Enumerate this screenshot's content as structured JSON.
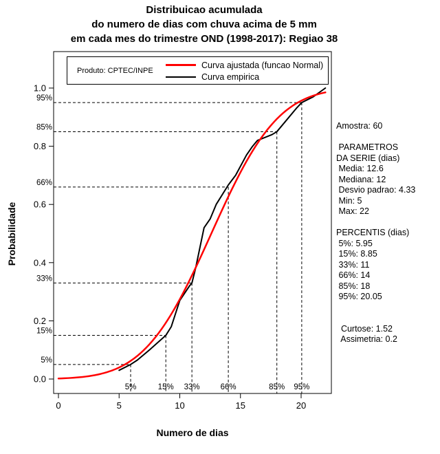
{
  "page": {
    "background": "#ffffff"
  },
  "legend": {
    "product": "Produto: CPTEC/INPE"
  },
  "stats": {
    "lines": [
      "Amostra: 60",
      "",
      " PARAMETROS",
      "DA SERIE (dias)",
      " Media: 12.6",
      " Mediana: 12",
      " Desvio padrao: 4.33",
      " Min: 5",
      " Max: 22",
      "",
      "PERCENTIS (dias)",
      " 5%: 5.95",
      " 15%: 8.85",
      " 33%: 11",
      " 66%: 14",
      " 85%: 18",
      " 95%: 20.05",
      "",
      "",
      "  Curtose: 1.52",
      "  Assimetria: 0.2"
    ]
  },
  "chart_data": {
    "type": "line",
    "title": "Distribuicao acumulada do numero de dias com chuva acima de 5 mm em cada mes do trimestre OND (1998-2017): Regiao 38",
    "title_lines": [
      "Distribuicao acumulada",
      "do numero de dias com chuva acima de 5 mm",
      "em cada mes do trimestre OND (1998-2017): Regiao 38"
    ],
    "xlabel": "Numero de dias",
    "ylabel": "Probabilidade",
    "xlim": [
      0,
      22
    ],
    "ylim": [
      0,
      1.0
    ],
    "x_ticks": [
      0,
      5,
      10,
      15,
      20
    ],
    "y_ticks": [
      0.0,
      0.2,
      0.4,
      0.6,
      0.8,
      1.0
    ],
    "grid": false,
    "legend_position": "top-inside",
    "series": [
      {
        "name": "Curva ajustada (funcao Normal)",
        "color": "#ff0000",
        "model": "normal_cdf",
        "mean": 12.6,
        "sd": 4.33,
        "x_range": [
          0,
          22
        ]
      },
      {
        "name": "Curva empirica",
        "color": "#000000",
        "model": "empirical_cdf",
        "points": [
          [
            5,
            0.03
          ],
          [
            5.95,
            0.05
          ],
          [
            6.5,
            0.065
          ],
          [
            7.5,
            0.1
          ],
          [
            8.85,
            0.15
          ],
          [
            9.3,
            0.18
          ],
          [
            10,
            0.27
          ],
          [
            10.8,
            0.32
          ],
          [
            11,
            0.33
          ],
          [
            11.3,
            0.38
          ],
          [
            12,
            0.52
          ],
          [
            12.5,
            0.55
          ],
          [
            13,
            0.6
          ],
          [
            14,
            0.667
          ],
          [
            14.6,
            0.7
          ],
          [
            15.5,
            0.77
          ],
          [
            16,
            0.8
          ],
          [
            16.4,
            0.82
          ],
          [
            17,
            0.83
          ],
          [
            17.6,
            0.84
          ],
          [
            18,
            0.85
          ],
          [
            19,
            0.9
          ],
          [
            19.6,
            0.93
          ],
          [
            20.05,
            0.95
          ],
          [
            21,
            0.97
          ],
          [
            22,
            1.0
          ]
        ]
      }
    ],
    "percentile_lines": [
      {
        "label": "5%",
        "p": 0.05,
        "x": 5.95
      },
      {
        "label": "15%",
        "p": 0.15,
        "x": 8.85
      },
      {
        "label": "33%",
        "p": 0.33,
        "x": 11
      },
      {
        "label": "66%",
        "p": 0.66,
        "x": 14
      },
      {
        "label": "85%",
        "p": 0.85,
        "x": 18
      },
      {
        "label": "95%",
        "p": 0.95,
        "x": 20.05
      }
    ],
    "annotations": {
      "sample_size": 60,
      "mean": 12.6,
      "median": 12,
      "sd": 4.33,
      "min": 5,
      "max": 22,
      "percentiles": {
        "5%": 5.95,
        "15%": 8.85,
        "33%": 11,
        "66%": 14,
        "85%": 18,
        "95%": 20.05
      },
      "kurtosis": 1.52,
      "skewness": 0.2
    }
  }
}
